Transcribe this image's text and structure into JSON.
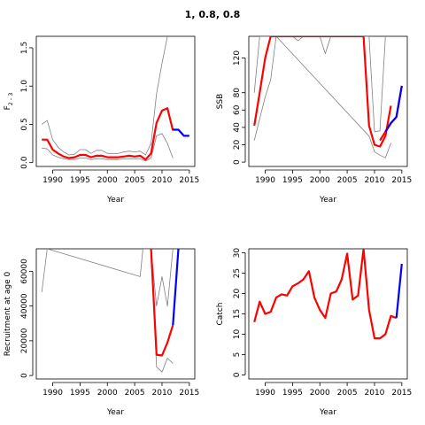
{
  "title": "1, 0.8, 0.8",
  "colors": {
    "estimate": "#ff0000",
    "forecast": "#0000ff",
    "bounds": "#808080"
  },
  "chart_data": [
    {
      "type": "line",
      "ylabel_main": "F",
      "ylabel_sub": "2 – 3",
      "xlabel": "Year",
      "xlim": [
        1987,
        2016
      ],
      "ylim": [
        -0.05,
        1.65
      ],
      "xticks": [
        "1990",
        "1995",
        "2000",
        "2005",
        "2010",
        "2015"
      ],
      "yticks": [
        "0.0",
        "0.5",
        "1.0",
        "1.5"
      ],
      "series": [
        {
          "role": "estimate",
          "x": [
            1988,
            1989,
            1990,
            1991,
            1992,
            1993,
            1994,
            1995,
            1996,
            1997,
            1998,
            1999,
            2000,
            2001,
            2002,
            2003,
            2004,
            2005,
            2006,
            2007,
            2008,
            2009,
            2010,
            2011,
            2012
          ],
          "y": [
            0.3,
            0.3,
            0.17,
            0.12,
            0.08,
            0.06,
            0.07,
            0.1,
            0.1,
            0.07,
            0.09,
            0.09,
            0.07,
            0.07,
            0.07,
            0.08,
            0.09,
            0.08,
            0.09,
            0.04,
            0.12,
            0.52,
            0.68,
            0.71,
            0.42
          ]
        },
        {
          "role": "forecast",
          "x": [
            2012,
            2013,
            2014,
            2015
          ],
          "y": [
            0.43,
            0.43,
            0.35,
            0.35
          ]
        },
        {
          "role": "upper",
          "x": [
            1988,
            1989,
            1990,
            1991,
            1992,
            1993,
            1994,
            1995,
            1996,
            1997,
            1998,
            1999,
            2000,
            2001,
            2002,
            2003,
            2004,
            2005,
            2006,
            2007,
            2008,
            2009,
            2010,
            2011
          ],
          "y": [
            0.5,
            0.55,
            0.3,
            0.2,
            0.14,
            0.1,
            0.11,
            0.17,
            0.17,
            0.12,
            0.16,
            0.16,
            0.12,
            0.12,
            0.12,
            0.14,
            0.15,
            0.14,
            0.15,
            0.1,
            0.25,
            0.9,
            1.3,
            1.65
          ]
        },
        {
          "role": "lower",
          "x": [
            1988,
            1989,
            1990,
            1991,
            1992,
            1993,
            1994,
            1995,
            1996,
            1997,
            1998,
            1999,
            2000,
            2001,
            2002,
            2003,
            2004,
            2005,
            2006,
            2007,
            2008,
            2009,
            2010,
            2011,
            2012
          ],
          "y": [
            0.19,
            0.18,
            0.1,
            0.07,
            0.05,
            0.04,
            0.04,
            0.06,
            0.06,
            0.04,
            0.05,
            0.05,
            0.04,
            0.04,
            0.04,
            0.05,
            0.05,
            0.05,
            0.05,
            0.02,
            0.06,
            0.35,
            0.38,
            0.25,
            0.06
          ]
        }
      ]
    },
    {
      "type": "line",
      "ylabel_main": "SSB",
      "ylabel_sub": "",
      "xlabel": "Year",
      "xlim": [
        1987,
        2016
      ],
      "ylim": [
        -5,
        145
      ],
      "xticks": [
        "1990",
        "1995",
        "2000",
        "2005",
        "2010",
        "2015"
      ],
      "yticks": [
        "0",
        "20",
        "40",
        "60",
        "80",
        "120"
      ],
      "series": [
        {
          "role": "estimate",
          "x": [
            1988,
            1989,
            1990,
            1991,
            2008,
            2009,
            2010,
            2011,
            2012,
            2013
          ],
          "y": [
            42,
            80,
            120,
            145,
            145,
            42,
            20,
            18,
            30,
            65
          ]
        },
        {
          "role": "estimate",
          "x": [
            2011,
            2012,
            2013,
            2014,
            2015
          ],
          "y": [
            25,
            35,
            45,
            52,
            88
          ]
        },
        {
          "role": "forecast",
          "x": [
            2012,
            2013,
            2014,
            2015
          ],
          "y": [
            35,
            45,
            52,
            88
          ]
        },
        {
          "role": "upper",
          "x": [
            1988,
            1989,
            1990,
            1991,
            1992,
            1993,
            1994,
            1995,
            1996,
            1997,
            1998,
            1999,
            2000,
            2001,
            2002,
            2009,
            2010,
            2011,
            2012
          ],
          "y": [
            80,
            145,
            145,
            145,
            145,
            145,
            145,
            145,
            140,
            145,
            145,
            145,
            145,
            125,
            145,
            145,
            35,
            36,
            145
          ]
        },
        {
          "role": "lower",
          "x": [
            1988,
            1989,
            1990,
            1991,
            1992,
            2009,
            2010,
            2011,
            2012,
            2013
          ],
          "y": [
            25,
            50,
            75,
            95,
            145,
            30,
            12,
            8,
            5,
            22
          ]
        }
      ]
    },
    {
      "type": "line",
      "ylabel_main": "Recruitment at age 0",
      "ylabel_sub": "",
      "xlabel": "Year",
      "xlim": [
        1987,
        2016
      ],
      "ylim": [
        -2000,
        73000
      ],
      "xticks": [
        "1990",
        "1995",
        "2000",
        "2005",
        "2010",
        "2015"
      ],
      "yticks": [
        "0",
        "20000",
        "40000",
        "60000"
      ],
      "series": [
        {
          "role": "estimate",
          "x": [
            2008,
            2009,
            2010,
            2011,
            2012
          ],
          "y": [
            73000,
            12000,
            11500,
            19000,
            29000
          ]
        },
        {
          "role": "forecast",
          "x": [
            2012,
            2013
          ],
          "y": [
            29000,
            73000
          ]
        },
        {
          "role": "upper",
          "x": [
            1988,
            1989,
            2006,
            2006.5,
            2007,
            2008,
            2009,
            2010,
            2011,
            2012
          ],
          "y": [
            48000,
            73000,
            57000,
            73000,
            73000,
            73000,
            40000,
            57000,
            40000,
            73000
          ]
        },
        {
          "role": "lower",
          "x": [
            2008,
            2009,
            2010,
            2011,
            2012
          ],
          "y": [
            73000,
            5000,
            2000,
            10000,
            7000
          ]
        }
      ]
    },
    {
      "type": "line",
      "ylabel_main": "Catch",
      "ylabel_sub": "",
      "xlabel": "Year",
      "xlim": [
        1987,
        2016
      ],
      "ylim": [
        -1,
        31
      ],
      "xticks": [
        "1990",
        "1995",
        "2000",
        "2005",
        "2010",
        "2015"
      ],
      "yticks": [
        "0",
        "5",
        "10",
        "15",
        "20",
        "25",
        "30"
      ],
      "series": [
        {
          "role": "estimate",
          "x": [
            1988,
            1989,
            1990,
            1991,
            1992,
            1993,
            1994,
            1995,
            1996,
            1997,
            1998,
            1999,
            2000,
            2001,
            2002,
            2003,
            2004,
            2005,
            2006,
            2007,
            2008,
            2009,
            2010,
            2011,
            2012,
            2013,
            2014
          ],
          "y": [
            13,
            18,
            15,
            15.5,
            19,
            19.8,
            19.5,
            21.8,
            22.5,
            23.5,
            25.5,
            19,
            16,
            14,
            20,
            20.5,
            23.5,
            29.8,
            18.5,
            19.5,
            31,
            16,
            9,
            9,
            10,
            14.5,
            14
          ]
        },
        {
          "role": "forecast",
          "x": [
            2014,
            2015
          ],
          "y": [
            14,
            27.3
          ]
        }
      ]
    }
  ]
}
